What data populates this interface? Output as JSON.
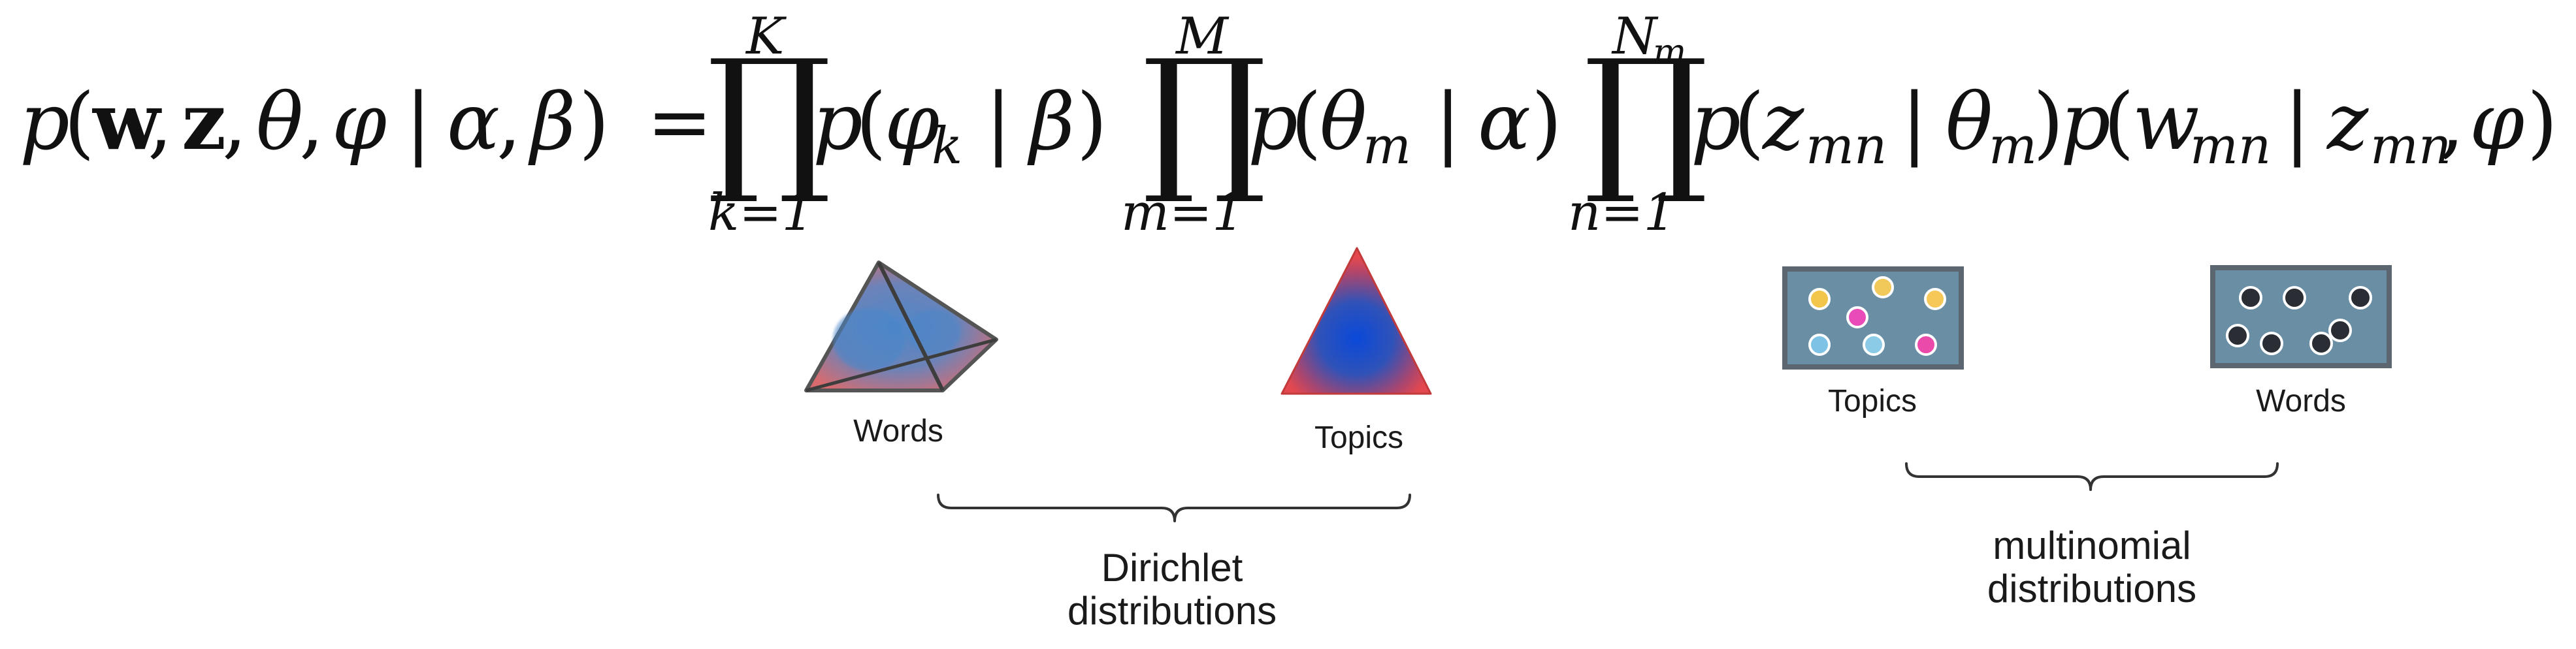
{
  "equation": {
    "lhs": {
      "p": "p",
      "open": "(",
      "w": "w",
      "c1": ",",
      "z": "z",
      "c2": ",",
      "theta": "θ",
      "c3": ",",
      "varphi": "φ",
      "bar": "|",
      "alpha": "α",
      "c4": ",",
      "beta": "β",
      "close": ")",
      "eq": "="
    },
    "prod1": {
      "symbol": "∏",
      "upper": "K",
      "lower": "k=1",
      "term": {
        "p": "p",
        "open": "(",
        "varphi": "φ",
        "sub": "k",
        "bar": "|",
        "beta": "β",
        "close": ")"
      }
    },
    "prod2": {
      "symbol": "∏",
      "upper": "M",
      "lower": "m=1",
      "term": {
        "p": "p",
        "open": "(",
        "theta": "θ",
        "sub": "m",
        "bar": "|",
        "alpha": "α",
        "close": ")"
      }
    },
    "prod3": {
      "symbol": "∏",
      "upper_main": "N",
      "upper_sub": "m",
      "lower": "n=1",
      "term1": {
        "p": "p",
        "open": "(",
        "z": "z",
        "sub": "mn",
        "bar": "|",
        "theta": "θ",
        "theta_sub": "m",
        "close": ")"
      },
      "term2": {
        "p": "p",
        "open": "(",
        "w": "w",
        "sub": "mn",
        "bar": "|",
        "z": "z",
        "z_sub": "mn",
        "comma": ",",
        "varphi": "φ",
        "close": ")"
      }
    }
  },
  "figures": {
    "words_simplex": {
      "label": "Words",
      "icon": "pyramid-simplex"
    },
    "topics_simplex": {
      "label": "Topics",
      "icon": "triangle-simplex"
    },
    "topics_multinomial": {
      "label": "Topics",
      "icon": "dot-box",
      "dot_colors": [
        "#f2c54b",
        "#f0c95a",
        "#f5c857",
        "#e94cb8",
        "#7ec3e6",
        "#8ccbe8",
        "#ea4aa9"
      ]
    },
    "words_multinomial": {
      "label": "Words",
      "icon": "dot-box",
      "dot_colors": [
        "#2a2d33"
      ]
    }
  },
  "braces": {
    "dirichlet": {
      "line1": "Dirichlet",
      "line2": "distributions"
    },
    "multinomial": {
      "line1": "multinomial",
      "line2": "distributions"
    }
  },
  "colors": {
    "box_fill": "#6a8fa5",
    "box_stroke": "#5b6670",
    "simplex_red": "#e15a5a",
    "simplex_blue": "#1d4fc6"
  }
}
